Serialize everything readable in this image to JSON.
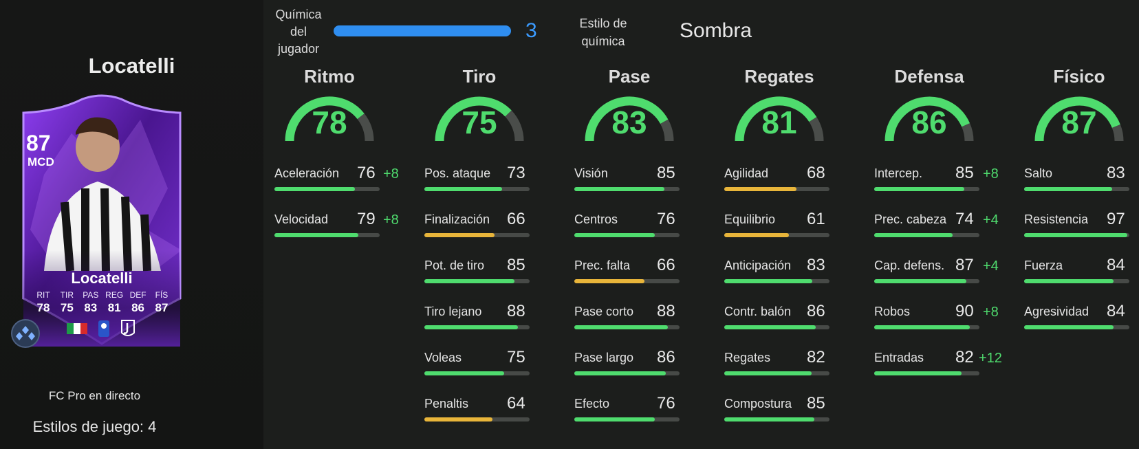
{
  "player": {
    "name": "Locatelli",
    "rating": "87",
    "position": "MCD",
    "source": "FC Pro en directo",
    "playstyles": "Estilos de juego: 4",
    "card_stats": [
      {
        "label": "RIT",
        "value": "78"
      },
      {
        "label": "TIR",
        "value": "75"
      },
      {
        "label": "PAS",
        "value": "83"
      },
      {
        "label": "REG",
        "value": "81"
      },
      {
        "label": "DEF",
        "value": "86"
      },
      {
        "label": "FÍS",
        "value": "87"
      }
    ]
  },
  "chemistry": {
    "label": "Química del jugador",
    "value": "3",
    "level": 1.0,
    "style_label": "Estilo de química",
    "style": "Sombra"
  },
  "colors": {
    "green": "#4fdc6e",
    "yellow": "#e8b53a",
    "blue": "#2f8ef0",
    "card_purple": "#6a2bbf"
  },
  "categories": [
    {
      "title": "Ritmo",
      "value": "78",
      "attributes": [
        {
          "name": "Aceleración",
          "value": "76",
          "bonus": "+8"
        },
        {
          "name": "Velocidad",
          "value": "79",
          "bonus": "+8"
        }
      ]
    },
    {
      "title": "Tiro",
      "value": "75",
      "attributes": [
        {
          "name": "Pos. ataque",
          "value": "73",
          "bonus": ""
        },
        {
          "name": "Finalización",
          "value": "66",
          "bonus": ""
        },
        {
          "name": "Pot. de tiro",
          "value": "85",
          "bonus": ""
        },
        {
          "name": "Tiro lejano",
          "value": "88",
          "bonus": ""
        },
        {
          "name": "Voleas",
          "value": "75",
          "bonus": ""
        },
        {
          "name": "Penaltis",
          "value": "64",
          "bonus": ""
        }
      ]
    },
    {
      "title": "Pase",
      "value": "83",
      "attributes": [
        {
          "name": "Visión",
          "value": "85",
          "bonus": ""
        },
        {
          "name": "Centros",
          "value": "76",
          "bonus": ""
        },
        {
          "name": "Prec. falta",
          "value": "66",
          "bonus": ""
        },
        {
          "name": "Pase corto",
          "value": "88",
          "bonus": ""
        },
        {
          "name": "Pase largo",
          "value": "86",
          "bonus": ""
        },
        {
          "name": "Efecto",
          "value": "76",
          "bonus": ""
        }
      ]
    },
    {
      "title": "Regates",
      "value": "81",
      "attributes": [
        {
          "name": "Agilidad",
          "value": "68",
          "bonus": ""
        },
        {
          "name": "Equilibrio",
          "value": "61",
          "bonus": ""
        },
        {
          "name": "Anticipación",
          "value": "83",
          "bonus": ""
        },
        {
          "name": "Contr. balón",
          "value": "86",
          "bonus": ""
        },
        {
          "name": "Regates",
          "value": "82",
          "bonus": ""
        },
        {
          "name": "Compostura",
          "value": "85",
          "bonus": ""
        }
      ]
    },
    {
      "title": "Defensa",
      "value": "86",
      "attributes": [
        {
          "name": "Intercep.",
          "value": "85",
          "bonus": "+8"
        },
        {
          "name": "Prec. cabeza",
          "value": "74",
          "bonus": "+4"
        },
        {
          "name": "Cap. defens.",
          "value": "87",
          "bonus": "+4"
        },
        {
          "name": "Robos",
          "value": "90",
          "bonus": "+8"
        },
        {
          "name": "Entradas",
          "value": "82",
          "bonus": "+12"
        }
      ]
    },
    {
      "title": "Físico",
      "value": "87",
      "attributes": [
        {
          "name": "Salto",
          "value": "83",
          "bonus": ""
        },
        {
          "name": "Resistencia",
          "value": "97",
          "bonus": ""
        },
        {
          "name": "Fuerza",
          "value": "84",
          "bonus": ""
        },
        {
          "name": "Agresividad",
          "value": "84",
          "bonus": ""
        }
      ]
    }
  ]
}
